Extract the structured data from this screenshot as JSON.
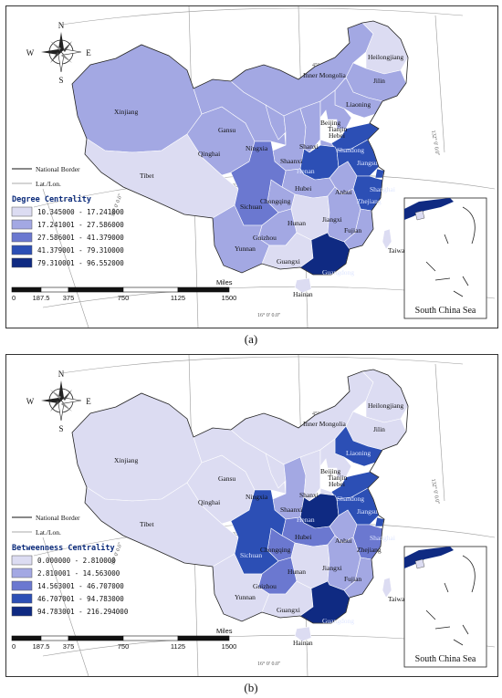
{
  "panels": [
    {
      "id": "a",
      "caption": "(a)",
      "legend_title": "Degree Centrality",
      "legend": [
        {
          "range": "10.345000 - 17.241000",
          "color": "#dcdcf2"
        },
        {
          "range": "17.241001 - 27.586000",
          "color": "#a3a8e3"
        },
        {
          "range": "27.586001 - 41.379000",
          "color": "#6b78d0"
        },
        {
          "range": "41.379001 - 79.310000",
          "color": "#2c4fb5"
        },
        {
          "range": "79.310001 - 96.552000",
          "color": "#0f2a82"
        }
      ],
      "province_classes": {
        "Xinjiang": 1,
        "Tibet": 0,
        "Qinghai": 1,
        "Gansu": 1,
        "Inner Mongolia": 1,
        "Heilongjiang": 0,
        "Jilin": 1,
        "Liaoning": 1,
        "Ningxia": 1,
        "Shaanxi": 1,
        "Shanxi": 1,
        "Hebei": 1,
        "Beijing": 1,
        "Tianjin": 1,
        "Shandong": 3,
        "Henan": 3,
        "Hubei": 1,
        "Anhui": 1,
        "Jiangsu": 3,
        "Shanghai": 3,
        "Zhejiang": 3,
        "Sichuan": 2,
        "Chongqing": 1,
        "Guizhou": 1,
        "Yunnan": 1,
        "Hunan": 0,
        "Jiangxi": 1,
        "Fujian": 1,
        "Guangxi": 0,
        "Guangdong": 4,
        "Hainan": 0,
        "Taiwan": 0
      }
    },
    {
      "id": "b",
      "caption": "(b)",
      "legend_title": "Betweenness Centrality",
      "legend": [
        {
          "range": "0.000000 - 2.810000",
          "color": "#dcdcf2"
        },
        {
          "range": "2.810001 - 14.563000",
          "color": "#a3a8e3"
        },
        {
          "range": "14.563001 - 46.707000",
          "color": "#6b78d0"
        },
        {
          "range": "46.707001 - 94.783000",
          "color": "#2c4fb5"
        },
        {
          "range": "94.783001 - 216.294000",
          "color": "#0f2a82"
        }
      ],
      "province_classes": {
        "Xinjiang": 0,
        "Tibet": 0,
        "Qinghai": 0,
        "Gansu": 0,
        "Inner Mongolia": 0,
        "Heilongjiang": 0,
        "Jilin": 0,
        "Liaoning": 3,
        "Ningxia": 0,
        "Shaanxi": 1,
        "Shanxi": 0,
        "Hebei": 0,
        "Beijing": 0,
        "Tianjin": 0,
        "Shandong": 3,
        "Henan": 4,
        "Hubei": 2,
        "Anhui": 1,
        "Jiangsu": 3,
        "Shanghai": 3,
        "Zhejiang": 2,
        "Sichuan": 3,
        "Chongqing": 2,
        "Guizhou": 2,
        "Yunnan": 0,
        "Hunan": 0,
        "Jiangxi": 1,
        "Fujian": 1,
        "Guangxi": 0,
        "Guangdong": 4,
        "Hainan": 0,
        "Taiwan": 0
      }
    }
  ],
  "compass": {
    "n": "N",
    "s": "S",
    "e": "E",
    "w": "W"
  },
  "line_legend": {
    "border": "National Border",
    "latlon": "Lat./Lon."
  },
  "scale": {
    "unit": "Miles",
    "ticks": [
      "0",
      "187.5",
      "375",
      "750",
      "1125",
      "1500"
    ]
  },
  "inset_title": "South China Sea",
  "coords": [
    "45° 0' 0.0\"",
    "32° 0' 0.0\"",
    "16° 0' 0.0\"",
    "132° 0' 0.0\"",
    "80° 0' 0.0\""
  ]
}
